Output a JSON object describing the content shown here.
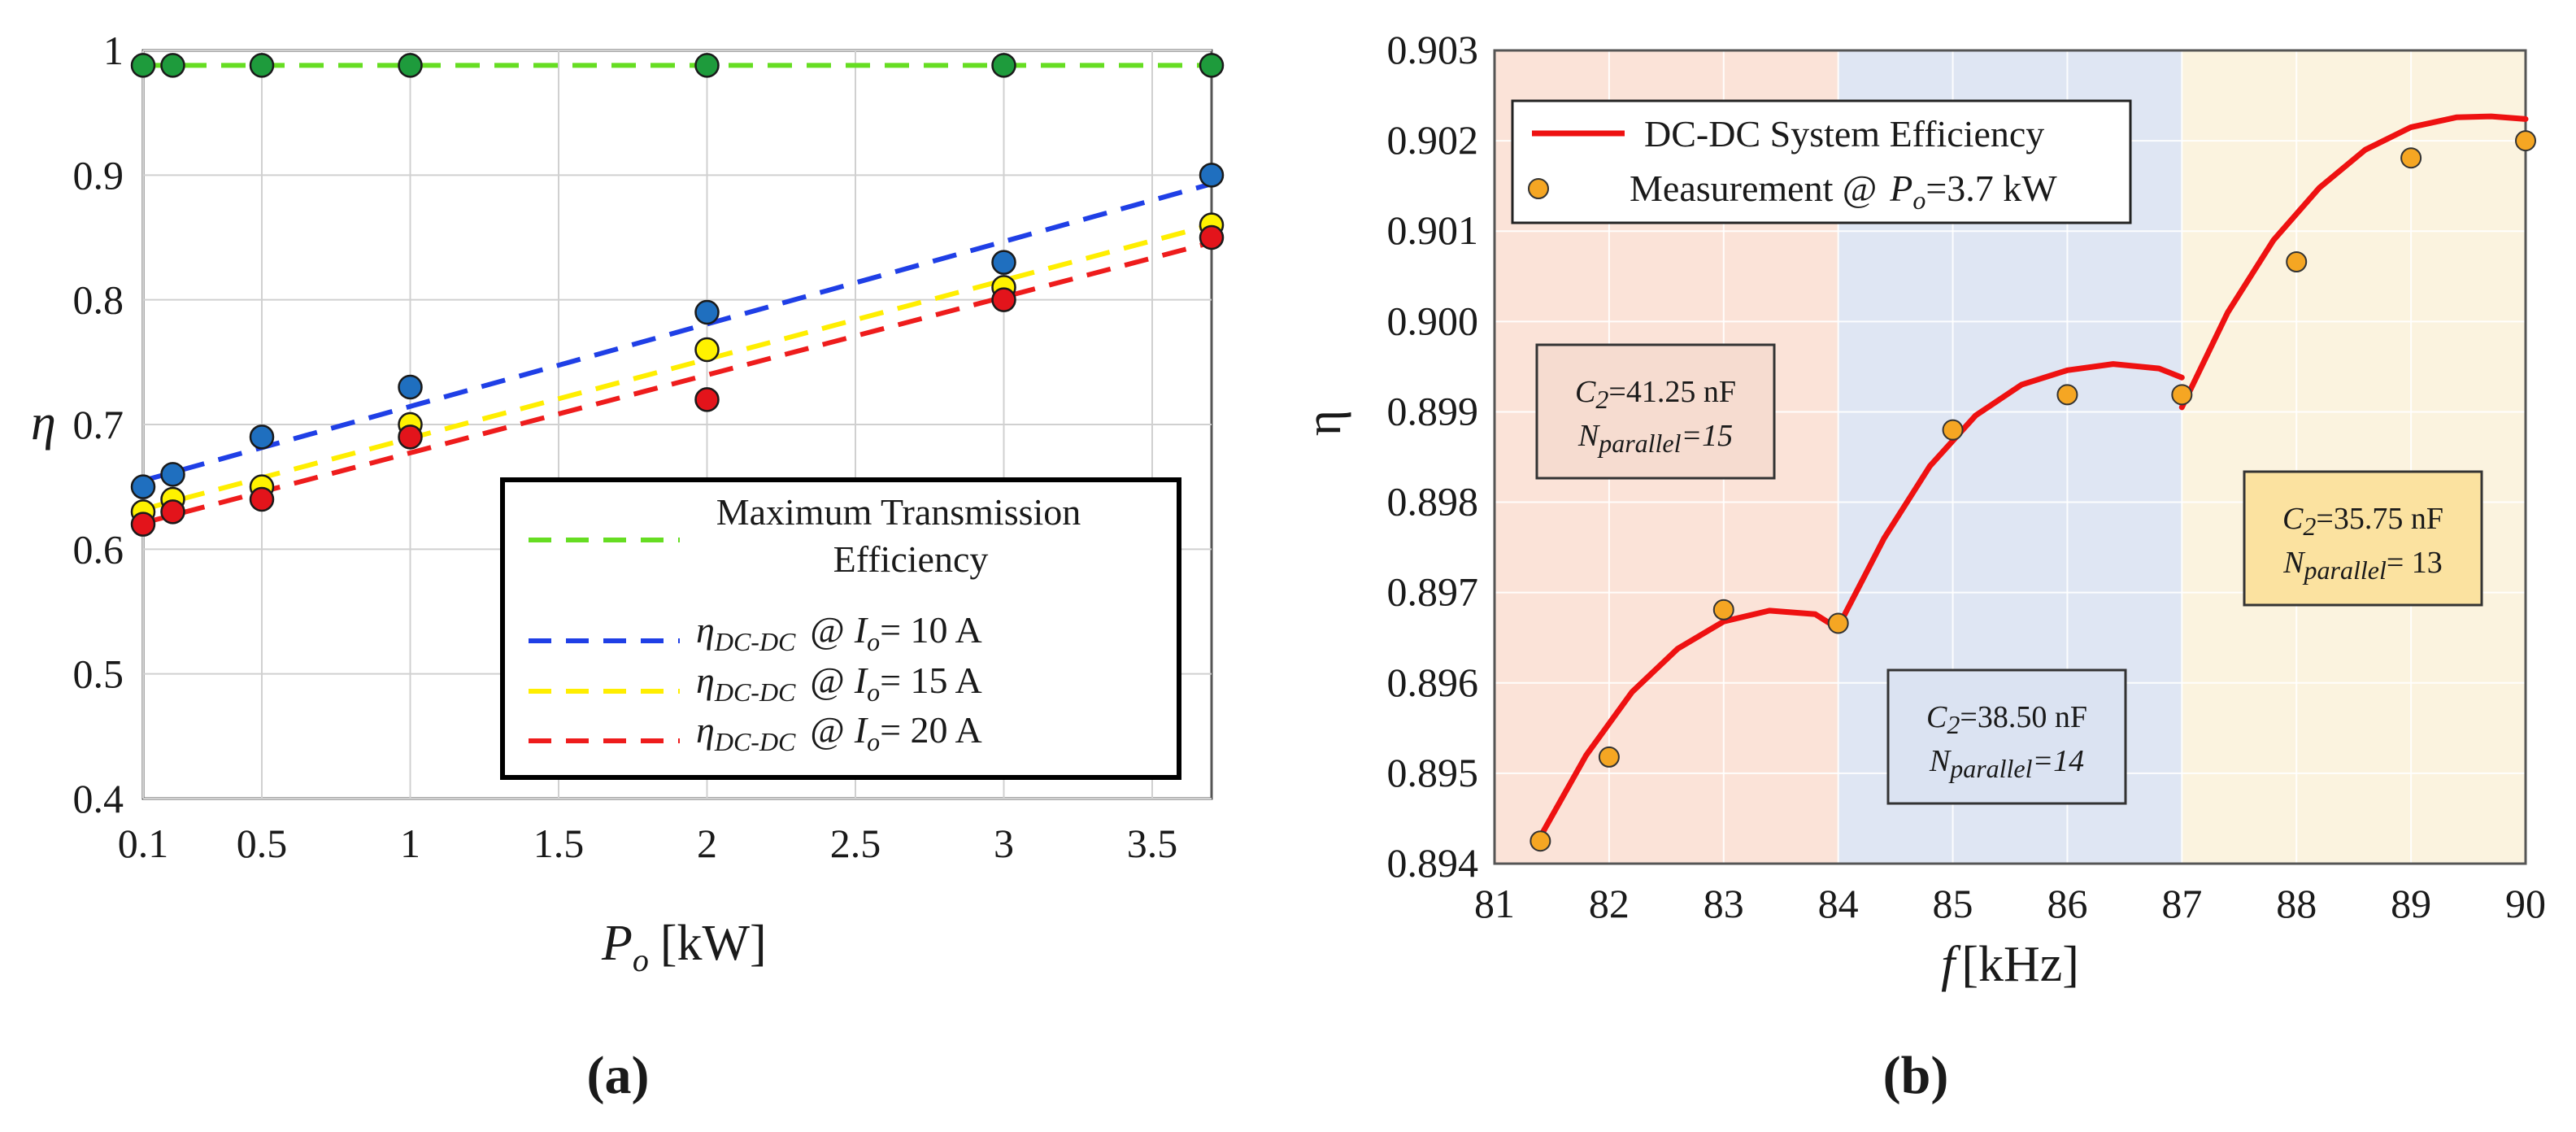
{
  "chart_data": [
    {
      "type": "line",
      "panel": "a",
      "caption": "(a)",
      "title": "",
      "xlabel": "P",
      "xlabel_sub": "o",
      "xlabel_unit": "[kW]",
      "ylabel": "η",
      "xlim": [
        0.1,
        3.7
      ],
      "ylim": [
        0.4,
        1.0
      ],
      "xticks": [
        "0.1",
        "0.5",
        "1",
        "1.5",
        "2",
        "2.5",
        "3",
        "3.5"
      ],
      "xtick_values": [
        0.1,
        0.5,
        1,
        1.5,
        2,
        2.5,
        3,
        3.5
      ],
      "yticks": [
        "0.4",
        "0.5",
        "0.6",
        "0.7",
        "0.8",
        "0.9",
        "1"
      ],
      "ytick_values": [
        0.4,
        0.5,
        0.6,
        0.7,
        0.8,
        0.9,
        1.0
      ],
      "grid": true,
      "x": [
        0.1,
        0.2,
        0.5,
        1,
        2,
        3,
        3.7
      ],
      "series": [
        {
          "name": "Maximum Transmission Efficiency",
          "legend_line1": "Maximum Transmission",
          "legend_line2": "Efficiency",
          "line_color": "#66dd22",
          "marker_color": "#1e9b3c",
          "values": [
            0.988,
            0.988,
            0.988,
            0.988,
            0.988,
            0.988,
            0.988
          ],
          "fit": [
            0.988,
            0.988
          ]
        },
        {
          "name": "η_DC-DC @ I_o = 10 A",
          "legend_main": "η",
          "legend_sub": "DC-DC",
          "legend_at": "@",
          "legend_var": "I",
          "legend_var_sub": "o",
          "legend_value": "= 10 A",
          "line_color": "#1f3fe6",
          "marker_color": "#1f6fbf",
          "values": [
            0.65,
            0.66,
            0.69,
            0.73,
            0.79,
            0.83,
            0.9
          ],
          "fit": [
            0.655,
            0.893
          ]
        },
        {
          "name": "η_DC-DC @ I_o = 15 A",
          "legend_main": "η",
          "legend_sub": "DC-DC",
          "legend_at": "@",
          "legend_var": "I",
          "legend_var_sub": "o",
          "legend_value": "= 15 A",
          "line_color": "#ffee00",
          "marker_color": "#fff200",
          "values": [
            0.63,
            0.64,
            0.65,
            0.7,
            0.76,
            0.81,
            0.86
          ],
          "fit": [
            0.632,
            0.86
          ]
        },
        {
          "name": "η_DC-DC @ I_o = 20 A",
          "legend_main": "η",
          "legend_sub": "DC-DC",
          "legend_at": "@",
          "legend_var": "I",
          "legend_var_sub": "o",
          "legend_value": "= 20 A",
          "line_color": "#ee1c1c",
          "marker_color": "#e3141b",
          "values": [
            0.62,
            0.63,
            0.64,
            0.69,
            0.72,
            0.8,
            0.85
          ],
          "fit": [
            0.621,
            0.846
          ]
        }
      ],
      "legend_position": "bottom-right"
    },
    {
      "type": "line",
      "panel": "b",
      "caption": "(b)",
      "title": "",
      "xlabel": "f",
      "xlabel_unit": "[kHz]",
      "ylabel": "η",
      "xlim": [
        81,
        90
      ],
      "ylim": [
        0.894,
        0.903
      ],
      "xticks": [
        "81",
        "82",
        "83",
        "84",
        "85",
        "86",
        "87",
        "88",
        "89",
        "90"
      ],
      "xtick_values": [
        81,
        82,
        83,
        84,
        85,
        86,
        87,
        88,
        89,
        90
      ],
      "yticks": [
        "0.894",
        "0.895",
        "0.896",
        "0.897",
        "0.898",
        "0.899",
        "0.900",
        "0.901",
        "0.902",
        "0.903"
      ],
      "ytick_values": [
        0.894,
        0.895,
        0.896,
        0.897,
        0.898,
        0.899,
        0.9,
        0.901,
        0.902,
        0.903
      ],
      "grid": true,
      "regions": [
        {
          "x_range": [
            81,
            84
          ],
          "color": "#fbe3d8"
        },
        {
          "x_range": [
            84,
            87
          ],
          "color": "#dfe6f3"
        },
        {
          "x_range": [
            87,
            90
          ],
          "color": "#fbf3df"
        }
      ],
      "curve": {
        "name": "DC-DC System Efficiency",
        "color": "#ee1111",
        "segments": [
          {
            "x": [
              81.4,
              81.8,
              82.2,
              82.6,
              83.0,
              83.4,
              83.8,
              84.0
            ],
            "y": [
              0.8943,
              0.8952,
              0.8959,
              0.89638,
              0.89668,
              0.8968,
              0.89676,
              0.8966
            ]
          },
          {
            "x": [
              84.0,
              84.4,
              84.8,
              85.2,
              85.6,
              86.0,
              86.4,
              86.8,
              87.0
            ],
            "y": [
              0.89662,
              0.8976,
              0.8984,
              0.89896,
              0.8993,
              0.89946,
              0.89953,
              0.89948,
              0.89938
            ]
          },
          {
            "x": [
              87.0,
              87.4,
              87.8,
              88.2,
              88.6,
              89.0,
              89.4,
              89.7,
              90.0
            ],
            "y": [
              0.89905,
              0.9001,
              0.9009,
              0.90148,
              0.9019,
              0.90215,
              0.90226,
              0.90227,
              0.90224
            ]
          }
        ]
      },
      "measurement": {
        "name": "Measurement @ P_o=3.7 kW",
        "legend_prefix": "Measurement @",
        "legend_var": "P",
        "legend_var_sub": "o",
        "legend_value": "=3.7 kW",
        "color": "#f5a623",
        "x": [
          81.4,
          82,
          83,
          84,
          85,
          86,
          87,
          88,
          89,
          90
        ],
        "y": [
          0.89425,
          0.89518,
          0.89681,
          0.89666,
          0.8988,
          0.89919,
          0.89919,
          0.90066,
          0.90181,
          0.902
        ]
      },
      "annotations": [
        {
          "c_label": "C",
          "c_sub": "2",
          "c_value": "=41.25 nF",
          "n_label": "N",
          "n_sub": "parallel",
          "n_value": "=15",
          "fill": "#f6dcd0"
        },
        {
          "c_label": "C",
          "c_sub": "2",
          "c_value": "=38.50 nF",
          "n_label": "N",
          "n_sub": "parallel",
          "n_value": "=14",
          "fill": "#dbe3f2"
        },
        {
          "c_label": "C",
          "c_sub": "2",
          "c_value": "=35.75 nF",
          "n_label": "N",
          "n_sub": "parallel",
          "n_value": "= 13",
          "fill": "#fbe2a0"
        }
      ],
      "legend_position": "top-left"
    }
  ]
}
